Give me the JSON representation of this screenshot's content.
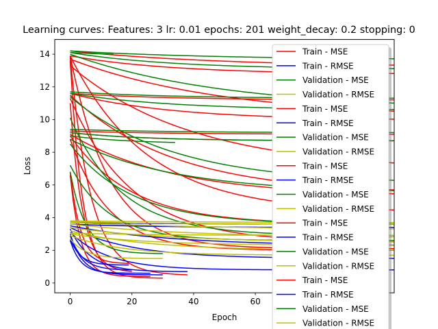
{
  "chart_data": {
    "type": "line",
    "title": "Learning curves: Features: 3 lr: 0.01 epochs: 201 weight_decay: 0.2 stopping: 0",
    "xlabel": "Epoch",
    "ylabel": "Loss",
    "xlim": [
      -5,
      105
    ],
    "ylim": [
      -0.6,
      14.9
    ],
    "xticks": [
      0,
      20,
      40,
      60
    ],
    "yticks": [
      0,
      2,
      4,
      6,
      8,
      10,
      12,
      14
    ],
    "grid": false,
    "legend_position": "right (overlapping plot, extends below the figure)",
    "series_style": {
      "Train - MSE": "#ff0000",
      "Train - RMSE": "#0000ff",
      "Validation - MSE": "#008000",
      "Validation - RMSE": "#bfbf00"
    },
    "legend": [
      "Train - MSE",
      "Train - RMSE",
      "Validation - MSE",
      "Validation - RMSE",
      "Train - MSE",
      "Train - RMSE",
      "Validation - MSE",
      "Validation - RMSE",
      "Train - MSE",
      "Train - RMSE",
      "Validation - MSE",
      "Validation - RMSE",
      "Train - MSE",
      "Train - RMSE",
      "Validation - MSE",
      "Validation - RMSE",
      "Train - MSE",
      "Train - RMSE",
      "Validation - MSE",
      "Validation - RMSE"
    ],
    "series": [
      {
        "group": "Train - MSE",
        "start": 14.2,
        "end": 13.3,
        "len": 120,
        "k": 0.02
      },
      {
        "group": "Train - MSE",
        "start": 13.9,
        "end": 12.8,
        "len": 120,
        "k": 0.03
      },
      {
        "group": "Train - MSE",
        "start": 13.7,
        "end": 10.4,
        "len": 120,
        "k": 0.02
      },
      {
        "group": "Train - MSE",
        "start": 13.3,
        "end": 7.2,
        "len": 120,
        "k": 0.025
      },
      {
        "group": "Train - MSE",
        "start": 13.9,
        "end": 4.4,
        "len": 120,
        "k": 0.04
      },
      {
        "group": "Train - MSE",
        "start": 13.9,
        "end": 2.1,
        "len": 120,
        "k": 0.08
      },
      {
        "group": "Train - MSE",
        "start": 13.8,
        "end": 0.5,
        "len": 38,
        "k": 0.15
      },
      {
        "group": "Train - MSE",
        "start": 13.6,
        "end": 0.3,
        "len": 30,
        "k": 0.25
      },
      {
        "group": "Train - MSE",
        "start": 11.6,
        "end": 11.2,
        "len": 120,
        "k": 0.03
      },
      {
        "group": "Train - MSE",
        "start": 11.6,
        "end": 10.0,
        "len": 120,
        "k": 0.03
      },
      {
        "group": "Train - MSE",
        "start": 11.5,
        "end": 5.6,
        "len": 120,
        "k": 0.03
      },
      {
        "group": "Train - MSE",
        "start": 11.3,
        "end": 2.5,
        "len": 120,
        "k": 0.05
      },
      {
        "group": "Train - MSE",
        "start": 11.0,
        "end": 0.7,
        "len": 20,
        "k": 0.25
      },
      {
        "group": "Train - MSE",
        "start": 9.3,
        "end": 9.1,
        "len": 120,
        "k": 0.03
      },
      {
        "group": "Train - MSE",
        "start": 9.2,
        "end": 8.7,
        "len": 120,
        "k": 0.04
      },
      {
        "group": "Train - MSE",
        "start": 9.1,
        "end": 5.4,
        "len": 120,
        "k": 0.03
      },
      {
        "group": "Train - MSE",
        "start": 9.0,
        "end": 3.6,
        "len": 120,
        "k": 0.05
      },
      {
        "group": "Train - MSE",
        "start": 8.8,
        "end": 2.0,
        "len": 120,
        "k": 0.08
      },
      {
        "group": "Train - MSE",
        "start": 6.8,
        "end": 1.2,
        "len": 19,
        "k": 0.3
      },
      {
        "group": "Train - MSE",
        "start": 6.6,
        "end": 0.4,
        "len": 26,
        "k": 0.3
      },
      {
        "group": "Train - RMSE",
        "start": 3.7,
        "end": 3.6,
        "len": 120,
        "k": 0.03
      },
      {
        "group": "Train - RMSE",
        "start": 3.6,
        "end": 3.4,
        "len": 120,
        "k": 0.04
      },
      {
        "group": "Train - RMSE",
        "start": 3.5,
        "end": 2.3,
        "len": 120,
        "k": 0.03
      },
      {
        "group": "Train - RMSE",
        "start": 3.4,
        "end": 1.5,
        "len": 120,
        "k": 0.05
      },
      {
        "group": "Train - RMSE",
        "start": 3.3,
        "end": 0.7,
        "len": 38,
        "k": 0.15
      },
      {
        "group": "Train - RMSE",
        "start": 3.1,
        "end": 0.8,
        "len": 120,
        "k": 0.08
      },
      {
        "group": "Train - RMSE",
        "start": 3.0,
        "end": 0.5,
        "len": 30,
        "k": 0.25
      },
      {
        "group": "Train - RMSE",
        "start": 2.9,
        "end": 0.8,
        "len": 20,
        "k": 0.25
      },
      {
        "group": "Train - RMSE",
        "start": 2.7,
        "end": 1.1,
        "len": 19,
        "k": 0.3
      },
      {
        "group": "Train - RMSE",
        "start": 2.6,
        "end": 0.6,
        "len": 26,
        "k": 0.3
      },
      {
        "group": "Validation - MSE",
        "start": 14.2,
        "end": 13.7,
        "len": 120,
        "k": 0.02
      },
      {
        "group": "Validation - MSE",
        "start": 14.1,
        "end": 13.1,
        "len": 120,
        "k": 0.03
      },
      {
        "group": "Validation - MSE",
        "start": 14.0,
        "end": 10.9,
        "len": 120,
        "k": 0.02
      },
      {
        "group": "Validation - MSE",
        "start": 14.1,
        "end": 14.0,
        "len": 14,
        "k": 0.05
      },
      {
        "group": "Validation - MSE",
        "start": 11.7,
        "end": 11.3,
        "len": 120,
        "k": 0.03
      },
      {
        "group": "Validation - MSE",
        "start": 11.6,
        "end": 10.6,
        "len": 120,
        "k": 0.03
      },
      {
        "group": "Validation - MSE",
        "start": 11.4,
        "end": 6.2,
        "len": 120,
        "k": 0.03
      },
      {
        "group": "Validation - MSE",
        "start": 10.1,
        "end": 2.9,
        "len": 120,
        "k": 0.06
      },
      {
        "group": "Validation - MSE",
        "start": 9.4,
        "end": 9.2,
        "len": 120,
        "k": 0.03
      },
      {
        "group": "Validation - MSE",
        "start": 9.2,
        "end": 8.7,
        "len": 120,
        "k": 0.04
      },
      {
        "group": "Validation - MSE",
        "start": 9.0,
        "end": 8.6,
        "len": 34,
        "k": 0.05
      },
      {
        "group": "Validation - MSE",
        "start": 8.8,
        "end": 5.6,
        "len": 120,
        "k": 0.03
      },
      {
        "group": "Validation - MSE",
        "start": 8.5,
        "end": 3.6,
        "len": 120,
        "k": 0.05
      },
      {
        "group": "Validation - MSE",
        "start": 7.2,
        "end": 2.6,
        "len": 120,
        "k": 0.08
      },
      {
        "group": "Validation - MSE",
        "start": 6.8,
        "end": 1.8,
        "len": 30,
        "k": 0.2
      },
      {
        "group": "Validation - RMSE",
        "start": 3.8,
        "end": 3.7,
        "len": 120,
        "k": 0.02
      },
      {
        "group": "Validation - RMSE",
        "start": 3.75,
        "end": 3.6,
        "len": 120,
        "k": 0.03
      },
      {
        "group": "Validation - RMSE",
        "start": 3.7,
        "end": 3.3,
        "len": 120,
        "k": 0.02
      },
      {
        "group": "Validation - RMSE",
        "start": 3.6,
        "end": 2.8,
        "len": 120,
        "k": 0.025
      },
      {
        "group": "Validation - RMSE",
        "start": 3.4,
        "end": 2.5,
        "len": 120,
        "k": 0.03
      },
      {
        "group": "Validation - RMSE",
        "start": 3.2,
        "end": 2.0,
        "len": 120,
        "k": 0.04
      },
      {
        "group": "Validation - RMSE",
        "start": 3.05,
        "end": 2.9,
        "len": 120,
        "k": 0.03
      },
      {
        "group": "Validation - RMSE",
        "start": 3.0,
        "end": 2.3,
        "len": 120,
        "k": 0.04
      },
      {
        "group": "Validation - RMSE",
        "start": 2.9,
        "end": 1.7,
        "len": 120,
        "k": 0.06
      },
      {
        "group": "Validation - RMSE",
        "start": 2.7,
        "end": 1.5,
        "len": 30,
        "k": 0.2
      }
    ]
  }
}
